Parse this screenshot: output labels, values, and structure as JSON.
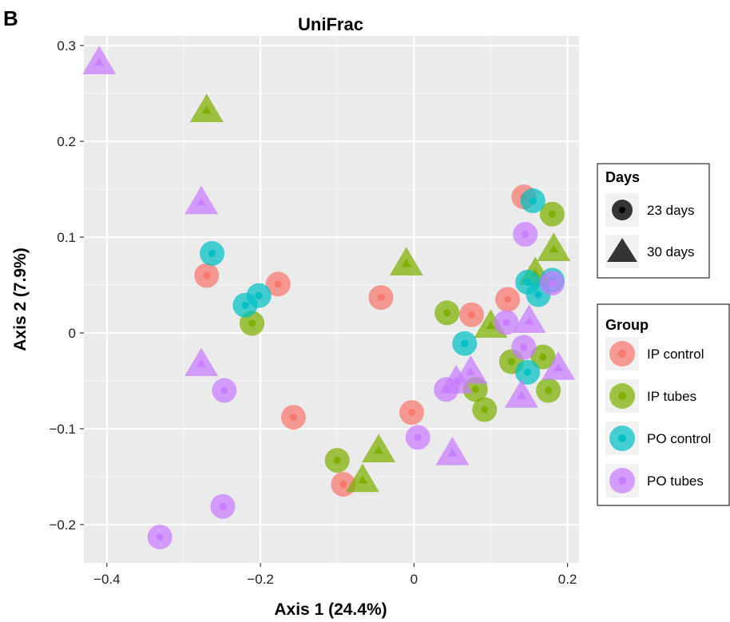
{
  "panel_letter": "B",
  "chart_data": {
    "type": "scatter",
    "title": "UniFrac",
    "xlabel": "Axis 1 (24.4%)",
    "ylabel": "Axis 2 (7.9%)",
    "xlim": [
      -0.43,
      0.215
    ],
    "ylim": [
      -0.24,
      0.31
    ],
    "xticks": [
      -0.4,
      -0.2,
      0,
      0.2
    ],
    "xtick_labels": [
      "−0.4",
      "−0.2",
      "0",
      "0.2"
    ],
    "yticks": [
      -0.2,
      -0.1,
      0,
      0.1,
      0.2,
      0.3
    ],
    "ytick_labels": [
      "−0.2",
      "−0.1",
      "0",
      "0.1",
      "0.2",
      "0.3"
    ],
    "grid": true,
    "panel_background": "#ebebeb",
    "legend_days": {
      "title": "Days",
      "entries": [
        {
          "label": "23 days",
          "shape": "circle"
        },
        {
          "label": "30 days",
          "shape": "triangle"
        }
      ]
    },
    "legend_group": {
      "title": "Group",
      "entries": [
        {
          "label": "IP control",
          "color": "#F8766D"
        },
        {
          "label": "IP tubes",
          "color": "#7CAE00"
        },
        {
          "label": "PO control",
          "color": "#00BFC4"
        },
        {
          "label": "PO tubes",
          "color": "#C77CFF"
        }
      ]
    },
    "series": [
      {
        "name": "IP control",
        "color": "#F8766D",
        "points": [
          {
            "x": -0.27,
            "y": 0.06,
            "days": 23
          },
          {
            "x": -0.177,
            "y": 0.051,
            "days": 23
          },
          {
            "x": -0.043,
            "y": 0.037,
            "days": 23
          },
          {
            "x": -0.157,
            "y": -0.088,
            "days": 23
          },
          {
            "x": -0.003,
            "y": -0.083,
            "days": 23
          },
          {
            "x": -0.092,
            "y": -0.158,
            "days": 23
          },
          {
            "x": 0.075,
            "y": 0.019,
            "days": 23
          },
          {
            "x": 0.122,
            "y": 0.035,
            "days": 23
          },
          {
            "x": 0.143,
            "y": 0.142,
            "days": 23
          }
        ]
      },
      {
        "name": "IP tubes",
        "color": "#7CAE00",
        "points": [
          {
            "x": -0.27,
            "y": 0.233,
            "days": 30
          },
          {
            "x": -0.211,
            "y": 0.01,
            "days": 23
          },
          {
            "x": -0.01,
            "y": 0.073,
            "days": 30
          },
          {
            "x": 0.043,
            "y": 0.021,
            "days": 23
          },
          {
            "x": -0.1,
            "y": -0.133,
            "days": 23
          },
          {
            "x": -0.046,
            "y": -0.122,
            "days": 30
          },
          {
            "x": -0.067,
            "y": -0.153,
            "days": 30
          },
          {
            "x": 0.1,
            "y": 0.008,
            "days": 30
          },
          {
            "x": 0.08,
            "y": -0.059,
            "days": 23
          },
          {
            "x": 0.092,
            "y": -0.08,
            "days": 23
          },
          {
            "x": 0.127,
            "y": -0.03,
            "days": 23
          },
          {
            "x": 0.168,
            "y": -0.025,
            "days": 23
          },
          {
            "x": 0.175,
            "y": -0.06,
            "days": 23
          },
          {
            "x": 0.18,
            "y": 0.124,
            "days": 23
          },
          {
            "x": 0.182,
            "y": 0.088,
            "days": 30
          },
          {
            "x": 0.158,
            "y": 0.063,
            "days": 30
          }
        ]
      },
      {
        "name": "PO control",
        "color": "#00BFC4",
        "points": [
          {
            "x": -0.263,
            "y": 0.083,
            "days": 23
          },
          {
            "x": -0.22,
            "y": 0.029,
            "days": 23
          },
          {
            "x": -0.202,
            "y": 0.039,
            "days": 23
          },
          {
            "x": 0.066,
            "y": -0.011,
            "days": 23
          },
          {
            "x": 0.148,
            "y": -0.041,
            "days": 23
          },
          {
            "x": 0.155,
            "y": 0.138,
            "days": 23
          },
          {
            "x": 0.148,
            "y": 0.053,
            "days": 23
          },
          {
            "x": 0.162,
            "y": 0.04,
            "days": 23
          },
          {
            "x": 0.18,
            "y": 0.055,
            "days": 23
          }
        ]
      },
      {
        "name": "PO tubes",
        "color": "#C77CFF",
        "points": [
          {
            "x": -0.41,
            "y": 0.283,
            "days": 30
          },
          {
            "x": -0.277,
            "y": 0.137,
            "days": 30
          },
          {
            "x": -0.277,
            "y": -0.032,
            "days": 30
          },
          {
            "x": -0.247,
            "y": -0.06,
            "days": 23
          },
          {
            "x": -0.249,
            "y": -0.181,
            "days": 23
          },
          {
            "x": -0.331,
            "y": -0.213,
            "days": 23
          },
          {
            "x": 0.005,
            "y": -0.109,
            "days": 23
          },
          {
            "x": 0.042,
            "y": -0.059,
            "days": 23
          },
          {
            "x": 0.055,
            "y": -0.05,
            "days": 30
          },
          {
            "x": 0.074,
            "y": -0.04,
            "days": 30
          },
          {
            "x": 0.05,
            "y": -0.125,
            "days": 30
          },
          {
            "x": 0.12,
            "y": 0.011,
            "days": 23
          },
          {
            "x": 0.14,
            "y": -0.065,
            "days": 30
          },
          {
            "x": 0.143,
            "y": -0.015,
            "days": 23
          },
          {
            "x": 0.145,
            "y": 0.103,
            "days": 23
          },
          {
            "x": 0.15,
            "y": 0.013,
            "days": 30
          },
          {
            "x": 0.18,
            "y": 0.052,
            "days": 23
          },
          {
            "x": 0.188,
            "y": -0.036,
            "days": 30
          }
        ]
      }
    ]
  }
}
